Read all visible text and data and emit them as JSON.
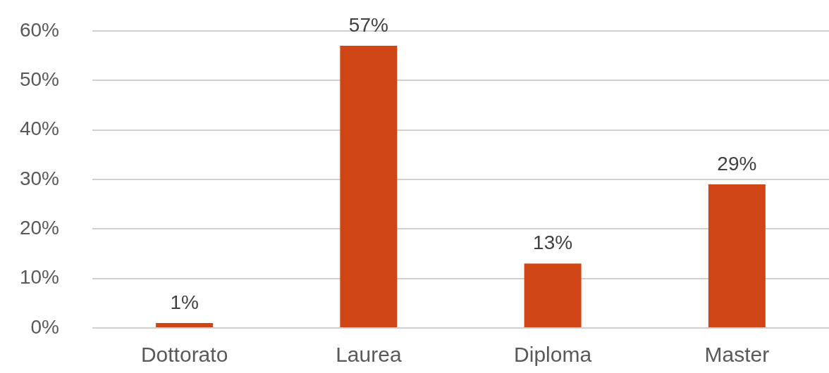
{
  "chart_data": {
    "type": "bar",
    "categories": [
      "Dottorato",
      "Laurea",
      "Diploma",
      "Master"
    ],
    "values": [
      1,
      57,
      13,
      29
    ],
    "color": "#d04515",
    "ylim": [
      0,
      60
    ],
    "yticks": [
      {
        "value": 0,
        "label": "0%"
      },
      {
        "value": 10,
        "label": "10%"
      },
      {
        "value": 20,
        "label": "20%"
      },
      {
        "value": 30,
        "label": "30%"
      },
      {
        "value": 40,
        "label": "40%"
      },
      {
        "value": 50,
        "label": "50%"
      },
      {
        "value": 60,
        "label": "60%"
      }
    ],
    "grid": "y",
    "value_labels": [
      "1%",
      "57%",
      "13%",
      "29%"
    ]
  }
}
